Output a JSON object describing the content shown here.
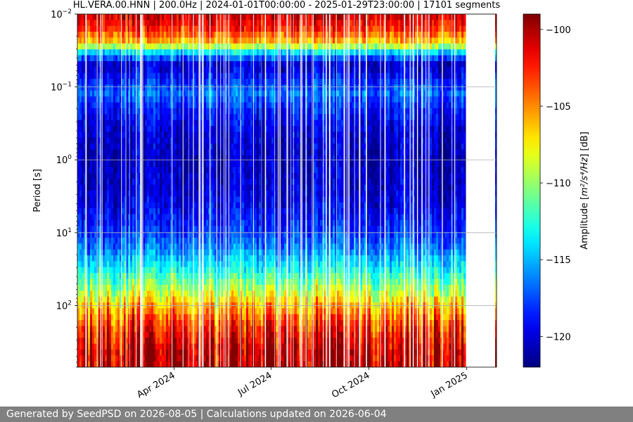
{
  "chart_data": {
    "type": "heatmap",
    "title": "HL.VERA.00.HNN | 200.0Hz | 2024-01-01T00:00:00 - 2025-01-29T23:00:00 | 17101 segments",
    "ylabel": "Period [s]",
    "y_scale": "log",
    "y_inverted": true,
    "ylim": [
      0.01,
      700
    ],
    "y_ticks": [
      {
        "value": 0.01,
        "label": "10",
        "exp": "−2"
      },
      {
        "value": 0.1,
        "label": "10",
        "exp": "−1"
      },
      {
        "value": 1,
        "label": "10",
        "exp": "0"
      },
      {
        "value": 10,
        "label": "10",
        "exp": "1"
      },
      {
        "value": 100,
        "label": "10",
        "exp": "2"
      }
    ],
    "xlim": [
      "2024-01-01",
      "2025-01-29"
    ],
    "x_ticks": [
      {
        "date": "2024-04-01",
        "label": "Apr 2024"
      },
      {
        "date": "2024-07-01",
        "label": "Jul 2024"
      },
      {
        "date": "2024-10-01",
        "label": "Oct 2024"
      },
      {
        "date": "2025-01-01",
        "label": "Jan 2025"
      }
    ],
    "data_gap": [
      "2025-01-01",
      "2025-01-26"
    ],
    "grid": true,
    "colormap": "jet",
    "colorbar": {
      "label_prefix": "Amplitude [",
      "label_units": "m²/s⁴/Hz",
      "label_suffix": "] [dB]",
      "range": [
        -122,
        -99
      ],
      "ticks": [
        {
          "value": -100,
          "label": "−100"
        },
        {
          "value": -105,
          "label": "−105"
        },
        {
          "value": -110,
          "label": "−110"
        },
        {
          "value": -115,
          "label": "−115"
        },
        {
          "value": -120,
          "label": "−120"
        }
      ]
    },
    "amplitude_profile": [
      {
        "period": 0.01,
        "db": -100.5
      },
      {
        "period": 0.016,
        "db": -102.5
      },
      {
        "period": 0.025,
        "db": -106.5
      },
      {
        "period": 0.035,
        "db": -115
      },
      {
        "period": 0.05,
        "db": -120.5
      },
      {
        "period": 0.08,
        "db": -118.5
      },
      {
        "period": 0.12,
        "db": -116.5
      },
      {
        "period": 0.2,
        "db": -118.5
      },
      {
        "period": 0.4,
        "db": -120
      },
      {
        "period": 1,
        "db": -120.5
      },
      {
        "period": 3,
        "db": -120
      },
      {
        "period": 8,
        "db": -118.5
      },
      {
        "period": 15,
        "db": -116.5
      },
      {
        "period": 30,
        "db": -113.5
      },
      {
        "period": 60,
        "db": -109.5
      },
      {
        "period": 100,
        "db": -106
      },
      {
        "period": 200,
        "db": -102.5
      },
      {
        "period": 400,
        "db": -100.5
      },
      {
        "period": 700,
        "db": -100
      }
    ]
  },
  "footer": {
    "text": "Generated by SeedPSD on 2026-08-05 | Calculations updated on 2026-06-04"
  },
  "colors": {
    "grid": "#b0b0b0",
    "footer_bg": "#808080"
  }
}
